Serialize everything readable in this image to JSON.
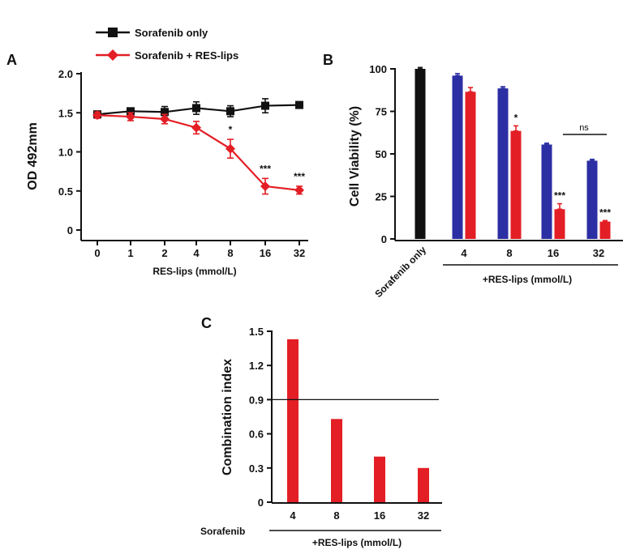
{
  "chart_data": [
    {
      "panel": "A",
      "type": "line",
      "xlabel": "RES-lips (mmol/L)",
      "ylabel": "OD 492mm",
      "categories": [
        "0",
        "1",
        "2",
        "4",
        "8",
        "16",
        "32"
      ],
      "ylim": [
        0,
        2.0
      ],
      "yticks": [
        "0",
        "0.5",
        "1.0",
        "1.5",
        "2.0"
      ],
      "series": [
        {
          "name": "Sorafenib only",
          "color": "#111111",
          "marker": "square",
          "values": [
            1.48,
            1.52,
            1.51,
            1.56,
            1.52,
            1.59,
            1.6
          ],
          "errors": [
            0.04,
            0.04,
            0.07,
            0.08,
            0.07,
            0.09,
            0.01
          ]
        },
        {
          "name": "Sorafenib + RES-lips",
          "color": "#e31e25",
          "marker": "diamond",
          "values": [
            1.47,
            1.45,
            1.42,
            1.31,
            1.04,
            0.56,
            0.51
          ],
          "errors": [
            0.04,
            0.05,
            0.06,
            0.08,
            0.12,
            0.1,
            0.05
          ]
        }
      ],
      "annotations": [
        {
          "index": 4,
          "text": "*"
        },
        {
          "index": 5,
          "text": "***"
        },
        {
          "index": 6,
          "text": "***"
        }
      ]
    },
    {
      "panel": "B",
      "type": "bar",
      "ylabel": "Cell Viability (%)",
      "ylim": [
        0,
        100
      ],
      "yticks": [
        "0",
        "25",
        "50",
        "75",
        "100"
      ],
      "control": {
        "label": "Sorafenib only",
        "value": 100,
        "error": 0.8,
        "color": "#111111"
      },
      "categories": [
        "4",
        "8",
        "16",
        "32"
      ],
      "group_label": "+RES-lips (mmol/L)",
      "series": [
        {
          "name": "RES-lips",
          "color": "#2c2ea3",
          "values": [
            96,
            88.5,
            55.5,
            46
          ],
          "errors": [
            1.2,
            1.0,
            0.8,
            0.8
          ]
        },
        {
          "name": "Sorafenib + RES-lips",
          "color": "#e31e25",
          "values": [
            86.5,
            63.5,
            17.5,
            10.2
          ],
          "errors": [
            2.5,
            3.0,
            3.2,
            0.6
          ]
        }
      ],
      "annotations": [
        {
          "index": 1,
          "text": "*"
        },
        {
          "index": 2,
          "text": "***"
        },
        {
          "index": 3,
          "text": "***"
        }
      ],
      "bracket": {
        "from": 2,
        "to": 3,
        "text": "ns"
      }
    },
    {
      "panel": "C",
      "type": "bar",
      "ylabel": "Combination index",
      "ylim": [
        0,
        1.5
      ],
      "yticks": [
        "0",
        "0.3",
        "0.6",
        "0.9",
        "1.2",
        "1.5"
      ],
      "categories": [
        "4",
        "8",
        "16",
        "32"
      ],
      "values": [
        1.43,
        0.73,
        0.4,
        0.3
      ],
      "color": "#e31e25",
      "reference_line": 0.9,
      "left_label": "Sorafenib",
      "group_label": "+RES-lips (mmol/L)"
    }
  ]
}
